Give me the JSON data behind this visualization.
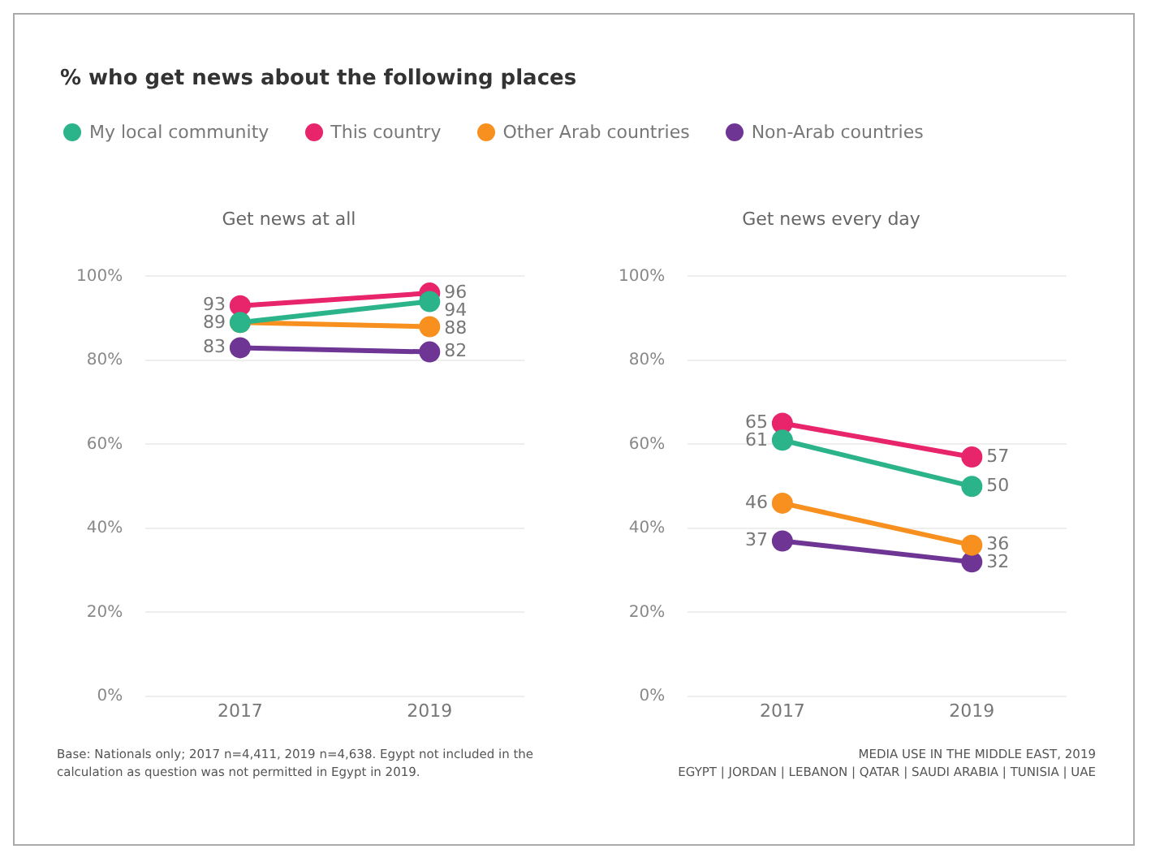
{
  "chart_data": [
    {
      "type": "line",
      "title": "% who get news about the following places",
      "subtitle": "Get news at all",
      "categories": [
        "2017",
        "2019"
      ],
      "series": [
        {
          "name": "My local community",
          "color": "#2bb38a",
          "values": [
            89,
            94
          ],
          "value_labels": [
            null,
            "94"
          ]
        },
        {
          "name": "This country",
          "color": "#e8246a",
          "values": [
            93,
            96
          ],
          "value_labels": [
            "93",
            "96"
          ]
        },
        {
          "name": "Other Arab countries",
          "color": "#f7901e",
          "values": [
            89,
            88
          ],
          "value_labels": [
            "89",
            "88"
          ]
        },
        {
          "name": "Non-Arab countries",
          "color": "#6e3594",
          "values": [
            83,
            82
          ],
          "value_labels": [
            "83",
            "82"
          ]
        }
      ],
      "ylim": [
        0,
        100
      ],
      "yticks": [
        {
          "value": 0,
          "label": "0%"
        },
        {
          "value": 20,
          "label": "20%"
        },
        {
          "value": 40,
          "label": "40%"
        },
        {
          "value": 60,
          "label": "60%"
        },
        {
          "value": 80,
          "label": "80%"
        },
        {
          "value": 100,
          "label": "100%"
        }
      ],
      "grid": "y",
      "legend": "top",
      "marker": "circle",
      "annotations": [
        "Base: Nationals only; 2017 n=4,411, 2019 n=4,638. Egypt not included in the calculation as question was not permitted in Egypt in 2019."
      ]
    },
    {
      "type": "line",
      "title": "Get news every day",
      "categories": [
        "2017",
        "2019"
      ],
      "series": [
        {
          "color": "#2bb38a",
          "values": [
            61,
            50
          ]
        },
        {
          "color": "#e8246a",
          "values": [
            65,
            57
          ]
        },
        {
          "color": "#f7901e",
          "values": [
            46,
            36
          ]
        },
        {
          "color": "#6e3594",
          "values": [
            37,
            32
          ]
        }
      ],
      "ylim": [
        0,
        100
      ],
      "yticks": [
        {
          "value": 0,
          "label": "0%"
        },
        {
          "value": 20,
          "label": "20%"
        },
        {
          "value": 40,
          "label": "40%"
        },
        {
          "value": 60,
          "label": "60%"
        },
        {
          "value": 80,
          "label": "80%"
        },
        {
          "value": 100,
          "label": "100%"
        }
      ],
      "grid": "y",
      "marker": "circle",
      "data_labels": true,
      "annotations": [
        "MEDIA USE IN THE MIDDLE EAST, 2019",
        "EGYPT | JORDAN | LEBANON | QATAR | SAUDI ARABIA | TUNISIA | UAE"
      ]
    }
  ]
}
